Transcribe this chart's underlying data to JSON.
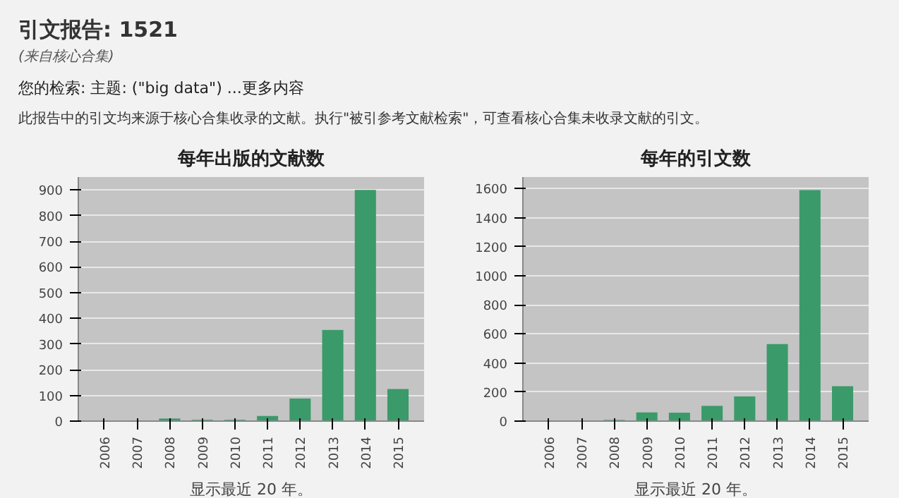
{
  "chart_data": [
    {
      "type": "bar",
      "title": "每年出版的文献数",
      "xlabel": "显示最近 20 年。",
      "annotations": [
        "引文报告: 1521",
        "(来自核心合集)",
        "您的检索:  主题: (\"big data\")  ...更多内容",
        "此报告中的引文均来源于核心合集收录的文献。执行\"被引参考文献检索\"，可查看核心合集未收录文献的引文。"
      ],
      "categories": [
        "2006",
        "2007",
        "2008",
        "2009",
        "2010",
        "2011",
        "2012",
        "2013",
        "2014",
        "2015"
      ],
      "values": [
        0,
        0,
        10,
        5,
        5,
        20,
        88,
        355,
        900,
        125
      ],
      "color": "#3a9a6a",
      "ylim": [
        0,
        950
      ],
      "yticks": [
        0,
        100,
        200,
        300,
        400,
        500,
        600,
        700,
        800,
        900
      ],
      "grid": "y"
    },
    {
      "type": "bar",
      "title": "每年的引文数",
      "xlabel": "显示最近 20 年。",
      "categories": [
        "2006",
        "2007",
        "2008",
        "2009",
        "2010",
        "2011",
        "2012",
        "2013",
        "2014",
        "2015"
      ],
      "values": [
        0,
        0,
        8,
        60,
        58,
        105,
        170,
        530,
        1590,
        240
      ],
      "color": "#3a9a6a",
      "ylim": [
        0,
        1680
      ],
      "yticks": [
        0,
        200,
        400,
        600,
        800,
        1000,
        1200,
        1400,
        1600
      ],
      "grid": "y"
    }
  ]
}
